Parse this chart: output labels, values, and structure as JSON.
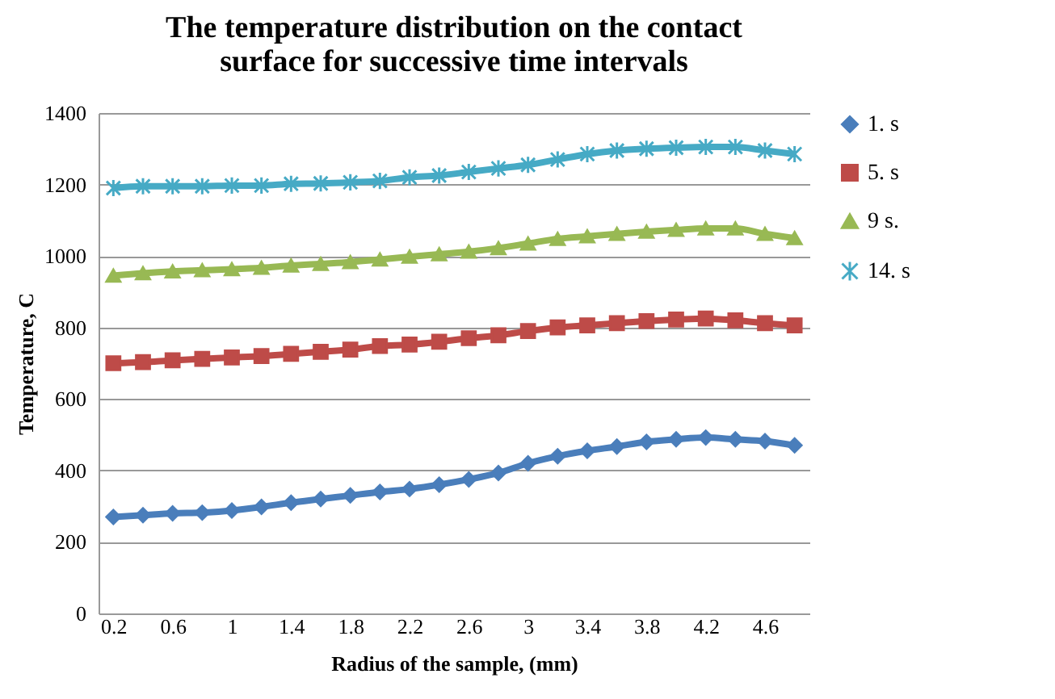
{
  "chart_data": {
    "type": "line",
    "title": "The temperature distribution on the contact surface for successive time intervals",
    "xlabel": "Radius of the sample, (mm)",
    "ylabel": "Temperature, C",
    "categories": [
      "0.2",
      null,
      "0.6",
      null,
      "1",
      null,
      "1.4",
      null,
      "1.8",
      null,
      "2.2",
      null,
      "2.6",
      null,
      "3",
      null,
      "3.4",
      null,
      "3.8",
      null,
      "4.2",
      null,
      "4.6",
      null
    ],
    "series": [
      {
        "name": "1. s",
        "color": "#4a7ebb",
        "marker": "diamond",
        "values": [
          270,
          275,
          280,
          282,
          288,
          298,
          310,
          320,
          330,
          340,
          348,
          360,
          375,
          393,
          420,
          440,
          455,
          467,
          480,
          487,
          492,
          487,
          482,
          470
        ]
      },
      {
        "name": "5. s",
        "color": "#be4b48",
        "marker": "square",
        "values": [
          700,
          703,
          708,
          712,
          716,
          720,
          726,
          732,
          738,
          748,
          752,
          760,
          770,
          778,
          790,
          800,
          806,
          812,
          818,
          822,
          825,
          820,
          812,
          806
        ]
      },
      {
        "name": "9 s.",
        "color": "#98b954",
        "marker": "triangle",
        "values": [
          945,
          952,
          957,
          960,
          963,
          967,
          973,
          978,
          983,
          990,
          998,
          1005,
          1012,
          1022,
          1035,
          1048,
          1055,
          1062,
          1068,
          1073,
          1077,
          1077,
          1062,
          1050
        ]
      },
      {
        "name": "14. s",
        "color": "#46aac5",
        "marker": "cross",
        "values": [
          1190,
          1195,
          1195,
          1195,
          1197,
          1197,
          1202,
          1203,
          1206,
          1210,
          1220,
          1225,
          1235,
          1245,
          1255,
          1270,
          1285,
          1295,
          1300,
          1303,
          1305,
          1305,
          1295,
          1285
        ]
      }
    ],
    "ylim": [
      0,
      1400
    ],
    "yticks": [
      0,
      200,
      400,
      600,
      800,
      1000,
      1200,
      1400
    ],
    "grid": "y",
    "legend": "right",
    "line_style": "solid"
  }
}
